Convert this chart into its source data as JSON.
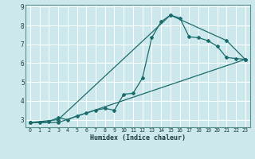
{
  "xlabel": "Humidex (Indice chaleur)",
  "bg_color": "#cce8ec",
  "line_color": "#1a6b6b",
  "grid_color": "#ffffff",
  "xlim": [
    -0.5,
    23.5
  ],
  "ylim": [
    2.6,
    9.1
  ],
  "xticks": [
    0,
    1,
    2,
    3,
    4,
    5,
    6,
    7,
    8,
    9,
    10,
    11,
    12,
    13,
    14,
    15,
    16,
    17,
    18,
    19,
    20,
    21,
    22,
    23
  ],
  "yticks": [
    3,
    4,
    5,
    6,
    7,
    8,
    9
  ],
  "line1_x": [
    0,
    1,
    2,
    3,
    4,
    5,
    6,
    7,
    8,
    9,
    10,
    11,
    12,
    13,
    14,
    15,
    16,
    17,
    18,
    19,
    20,
    21,
    22,
    23
  ],
  "line1_y": [
    2.85,
    2.85,
    2.9,
    3.1,
    3.0,
    3.2,
    3.35,
    3.5,
    3.6,
    3.5,
    4.35,
    4.4,
    5.2,
    7.35,
    8.2,
    8.55,
    8.4,
    7.4,
    7.35,
    7.2,
    6.9,
    6.3,
    6.25,
    6.2
  ],
  "line2_x": [
    0,
    3,
    15,
    21,
    23
  ],
  "line2_y": [
    2.85,
    3.0,
    8.55,
    7.2,
    6.2
  ],
  "line3_x": [
    0,
    3,
    23
  ],
  "line3_y": [
    2.85,
    2.85,
    6.2
  ]
}
